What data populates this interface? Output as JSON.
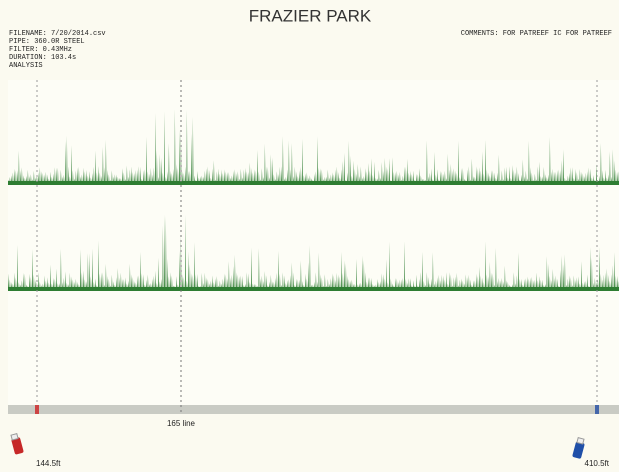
{
  "header": {
    "title": "FRAZIER PARK",
    "info": [
      "FILENAME: 7/20/2014.csv",
      "PIPE: 360.0R STEEL",
      "FILTER: 0.43MHz",
      "DURATION: 103.4s",
      "ANALYSIS"
    ],
    "comments": "COMMENTS: FOR PATREEF IC FOR PATREEF"
  },
  "footer": {
    "marker": "165 line",
    "left": "144.5ft",
    "right": "410.5ft"
  }
}
